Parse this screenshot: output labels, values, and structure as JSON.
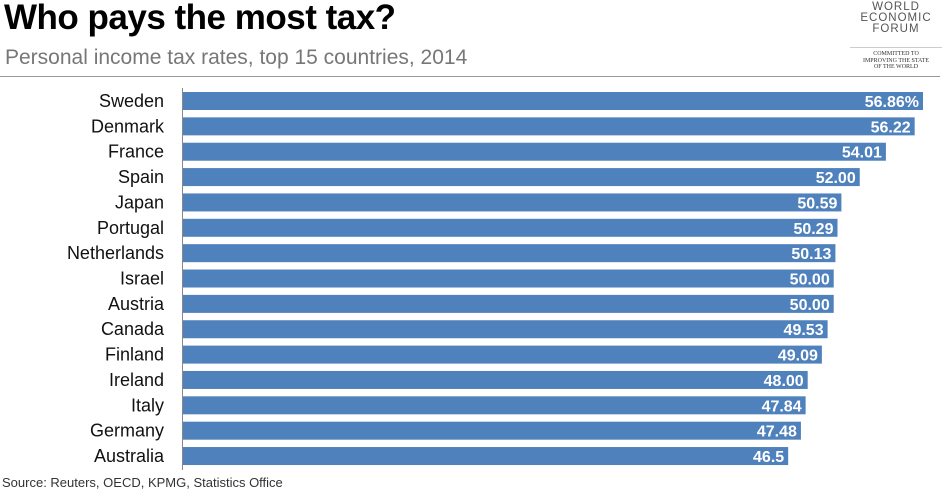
{
  "title": "Who pays the most tax?",
  "subtitle": "Personal income tax rates, top 15 countries, 2014",
  "source": "Source: Reuters, OECD, KPMG, Statistics Office",
  "logo": {
    "line1": "WORLD",
    "line2": "ECONOMIC",
    "line3": "FORUM",
    "tagline1": "COMMITTED TO",
    "tagline2": "IMPROVING THE STATE",
    "tagline3": "OF THE WORLD"
  },
  "colors": {
    "bar": "#4f81bd",
    "label_text": "#ffffff"
  },
  "chart_data": {
    "type": "bar",
    "orientation": "horizontal",
    "title": "Who pays the most tax?",
    "subtitle": "Personal income tax rates, top 15 countries, 2014",
    "categories": [
      "Sweden",
      "Denmark",
      "France",
      "Spain",
      "Japan",
      "Portugal",
      "Netherlands",
      "Israel",
      "Austria",
      "Canada",
      "Finland",
      "Ireland",
      "Italy",
      "Germany",
      "Australia"
    ],
    "values": [
      56.86,
      56.22,
      54.01,
      52.0,
      50.59,
      50.29,
      50.13,
      50.0,
      50.0,
      49.53,
      49.09,
      48.0,
      47.84,
      47.48,
      46.5
    ],
    "data_labels": [
      "56.86%",
      "56.22",
      "54.01",
      "52.00",
      "50.59",
      "50.29",
      "50.13",
      "50.00",
      "50.00",
      "49.53",
      "49.09",
      "48.00",
      "47.84",
      "47.48",
      "46.5"
    ],
    "xlim": [
      0,
      56.86
    ],
    "grid": false,
    "legend": "none"
  }
}
